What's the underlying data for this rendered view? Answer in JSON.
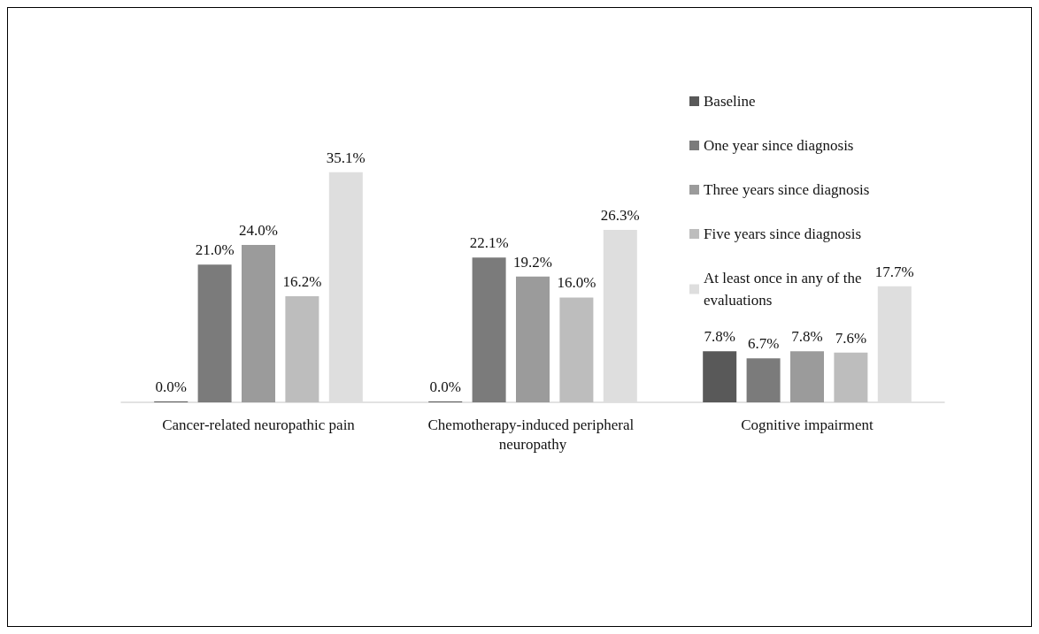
{
  "chart_data": {
    "type": "bar",
    "categories": [
      "Cancer-related neuropathic pain",
      "Chemotherapy-induced peripheral neuropathy",
      "Cognitive impairment"
    ],
    "series": [
      {
        "name": "Baseline",
        "color": "#595959",
        "values": [
          0.0,
          0.0,
          7.8
        ],
        "value_labels": [
          "0.0%",
          "0.0%",
          "7.8%"
        ]
      },
      {
        "name": "One year since diagnosis",
        "color": "#7b7b7b",
        "values": [
          21.0,
          22.1,
          6.7
        ],
        "value_labels": [
          "21.0%",
          "22.1%",
          "6.7%"
        ]
      },
      {
        "name": "Three years since diagnosis",
        "color": "#9b9b9b",
        "values": [
          24.0,
          19.2,
          7.8
        ],
        "value_labels": [
          "24.0%",
          "19.2%",
          "7.8%"
        ]
      },
      {
        "name": "Five years since diagnosis",
        "color": "#bdbdbd",
        "values": [
          16.2,
          16.0,
          7.6
        ],
        "value_labels": [
          "16.2%",
          "16.0%",
          "7.6%"
        ]
      },
      {
        "name": "At least once in any of the evaluations",
        "color": "#dedede",
        "values": [
          35.1,
          26.3,
          17.7
        ],
        "value_labels": [
          "35.1%",
          "26.3%",
          "17.7%"
        ]
      }
    ],
    "legend": "top right"
  }
}
